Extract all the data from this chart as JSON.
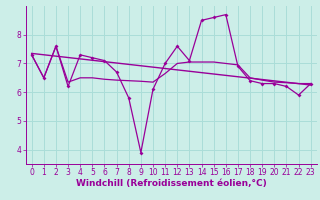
{
  "xlabel": "Windchill (Refroidissement éolien,°C)",
  "background_color": "#cceee8",
  "grid_color": "#aaddd8",
  "line_color": "#990099",
  "xlim": [
    -0.5,
    23.5
  ],
  "ylim": [
    3.5,
    9.0
  ],
  "yticks": [
    4,
    5,
    6,
    7,
    8
  ],
  "xticks": [
    0,
    1,
    2,
    3,
    4,
    5,
    6,
    7,
    8,
    9,
    10,
    11,
    12,
    13,
    14,
    15,
    16,
    17,
    18,
    19,
    20,
    21,
    22,
    23
  ],
  "line1_x": [
    0,
    1,
    2,
    3,
    4,
    5,
    6,
    7,
    8,
    9,
    10,
    11,
    12,
    13,
    14,
    15,
    16,
    17,
    18,
    19,
    20,
    21,
    22,
    23
  ],
  "line1_y": [
    7.3,
    6.5,
    7.6,
    6.2,
    7.3,
    7.2,
    7.1,
    6.7,
    5.8,
    3.9,
    6.1,
    7.0,
    7.6,
    7.1,
    8.5,
    8.6,
    8.7,
    6.9,
    6.4,
    6.3,
    6.3,
    6.2,
    5.9,
    6.3
  ],
  "line2_x": [
    0,
    23
  ],
  "line2_y": [
    7.35,
    6.25
  ],
  "line3_x": [
    0,
    1,
    2,
    3,
    4,
    5,
    6,
    7,
    8,
    9,
    10,
    11,
    12,
    13,
    14,
    15,
    16,
    17,
    18,
    19,
    20,
    21,
    22,
    23
  ],
  "line3_y": [
    7.3,
    6.5,
    7.6,
    6.35,
    6.5,
    6.5,
    6.45,
    6.42,
    6.4,
    6.38,
    6.35,
    6.65,
    7.0,
    7.05,
    7.05,
    7.05,
    7.0,
    6.95,
    6.5,
    6.42,
    6.35,
    6.33,
    6.3,
    6.3
  ],
  "tick_fontsize": 5.5,
  "xlabel_fontsize": 6.5
}
